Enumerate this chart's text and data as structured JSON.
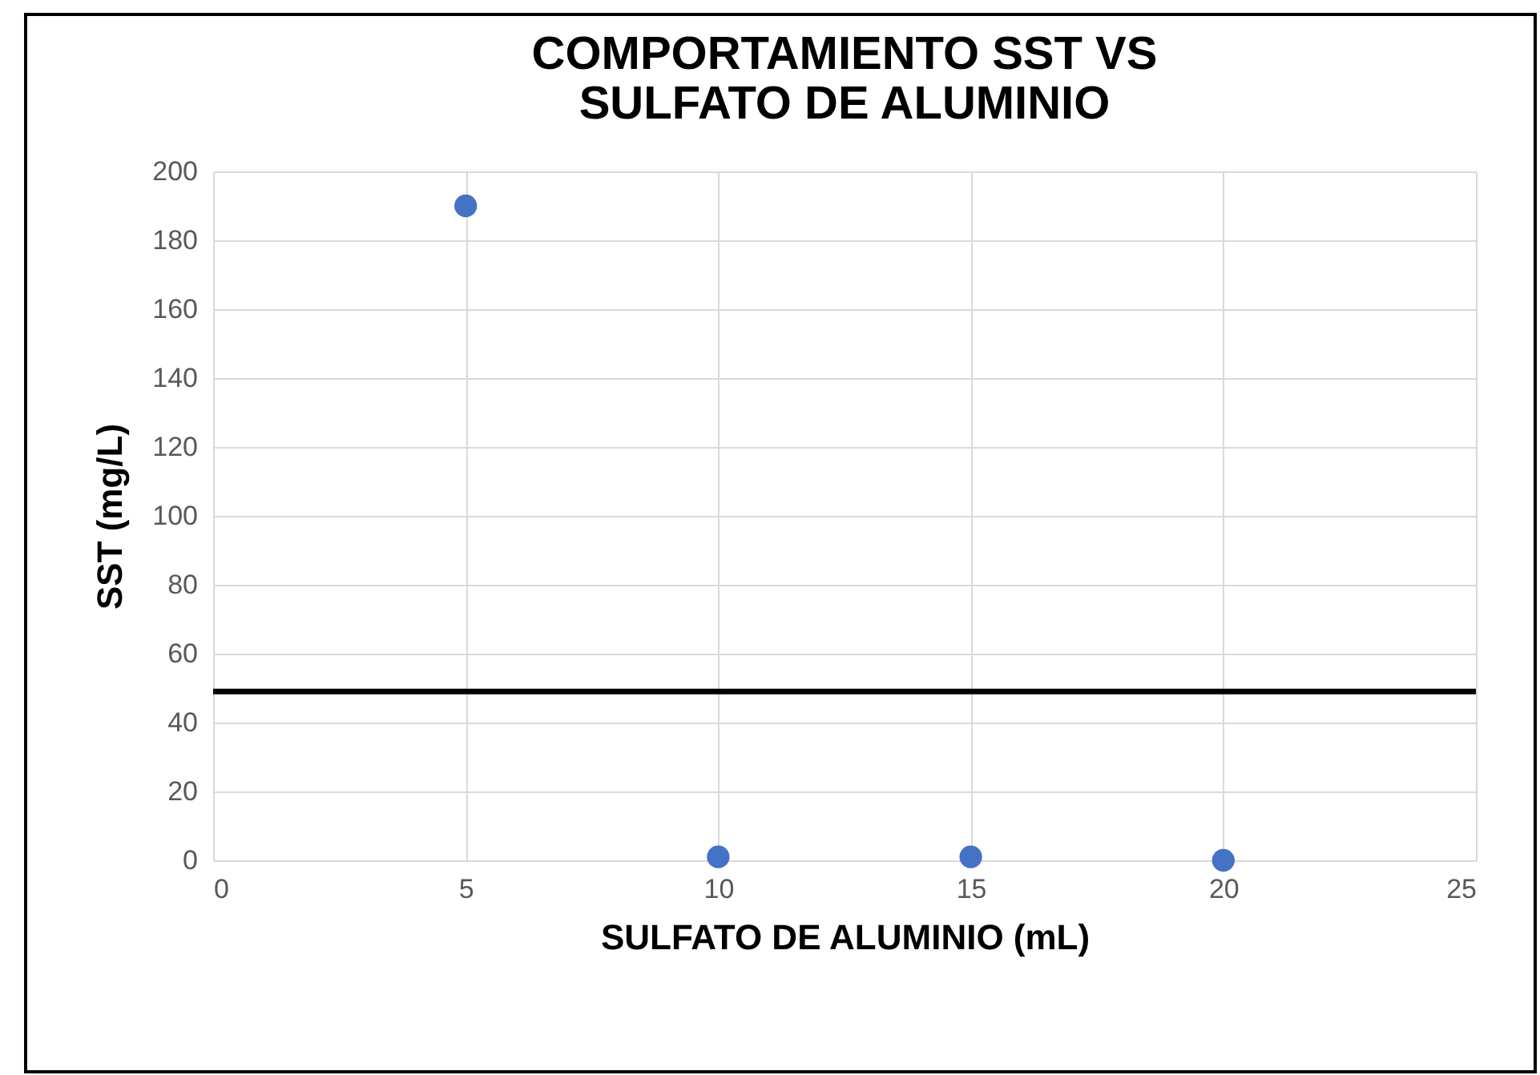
{
  "chart_data": {
    "type": "scatter",
    "title": [
      "COMPORTAMIENTO SST VS",
      "SULFATO DE ALUMINIO"
    ],
    "xlabel": "SULFATO DE ALUMINIO (mL)",
    "ylabel": "SST (mg/L)",
    "x": [
      5,
      10,
      15,
      20
    ],
    "series": [
      {
        "color": "#4472c4",
        "values": [
          190,
          1,
          1,
          0
        ]
      }
    ],
    "xlim": [
      0,
      25
    ],
    "xticks": [
      0,
      5,
      10,
      15,
      20,
      25
    ],
    "ylim": [
      0,
      200
    ],
    "yticks": [
      0,
      20,
      40,
      60,
      80,
      100,
      120,
      140,
      160,
      180,
      200
    ],
    "ref_lines": [
      {
        "axis": "y",
        "value": 49,
        "color": "#000000"
      }
    ],
    "grid": true,
    "marker": "circle"
  }
}
